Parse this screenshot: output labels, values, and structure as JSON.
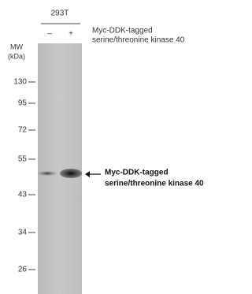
{
  "cell_line": "293T",
  "lanes": [
    "–",
    "+"
  ],
  "treatment_label": [
    "Myc-DDK-tagged",
    "serine/threonine kinase 40"
  ],
  "mw_label": [
    "MW",
    "(kDa)"
  ],
  "markers": [
    "130",
    "95",
    "72",
    "55",
    "43",
    "34",
    "26"
  ],
  "band_label": [
    "Myc-DDK-tagged",
    "serine/threonine kinase 40"
  ]
}
